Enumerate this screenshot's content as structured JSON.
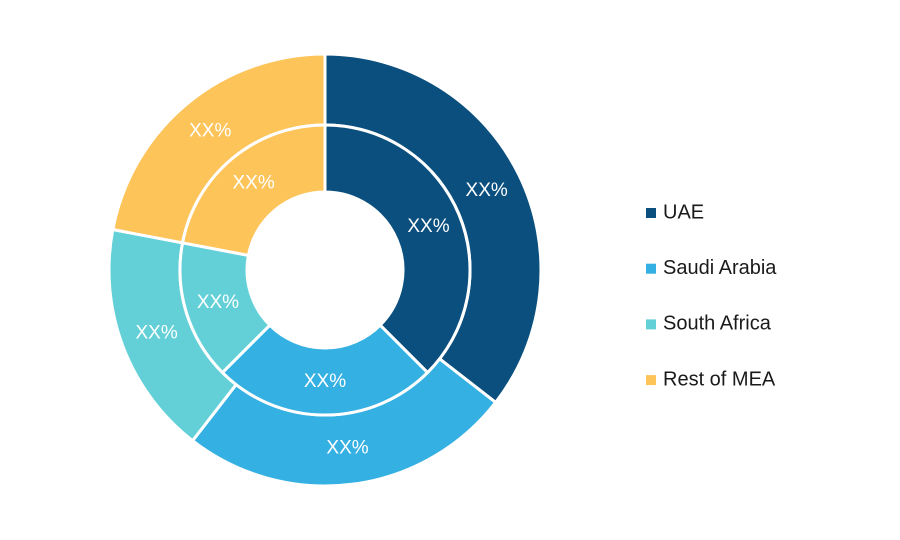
{
  "chart_data": {
    "type": "donut",
    "categories": [
      "UAE",
      "Saudi Arabia",
      "South Africa",
      "Rest of MEA"
    ],
    "colors": [
      "#0b4f7e",
      "#35b0e2",
      "#63d0d8",
      "#fdc45a"
    ],
    "series": [
      {
        "values": [
          35.5,
          25,
          17.5,
          22
        ],
        "value_labels": [
          "XX%",
          "XX%",
          "XX%",
          "XX%"
        ]
      },
      {
        "values": [
          37.5,
          25,
          15.5,
          22
        ],
        "value_labels": [
          "XX%",
          "XX%",
          "XX%",
          "XX%"
        ]
      }
    ]
  }
}
